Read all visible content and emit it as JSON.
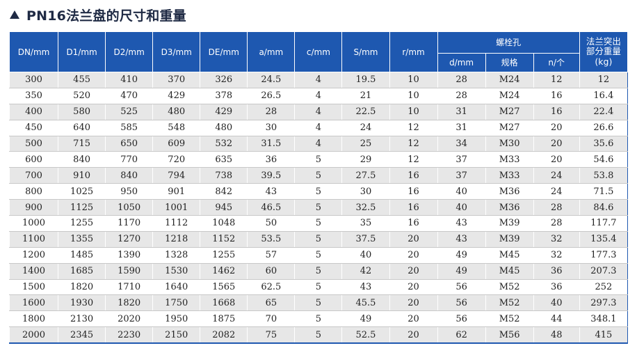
{
  "title": "PN16法兰盘的尺寸和重量",
  "headers": {
    "dn": "DN/mm",
    "d1": "D1/mm",
    "d2": "D2/mm",
    "d3": "D3/mm",
    "de": "DE/mm",
    "a": "a/mm",
    "c": "c/mm",
    "s": "S/mm",
    "r": "r/mm",
    "bolt_group": "螺栓孔",
    "bolt_d": "d/mm",
    "bolt_spec": "规格",
    "bolt_n": "n/个",
    "weight_line1": "法兰突出",
    "weight_line2": "部分重量",
    "weight_line3": "(kg)"
  },
  "rows": [
    [
      "300",
      "455",
      "410",
      "370",
      "326",
      "24.5",
      "4",
      "19.5",
      "10",
      "28",
      "M24",
      "12",
      "12"
    ],
    [
      "350",
      "520",
      "470",
      "429",
      "378",
      "26.5",
      "4",
      "21",
      "10",
      "28",
      "M24",
      "16",
      "16.4"
    ],
    [
      "400",
      "580",
      "525",
      "480",
      "429",
      "28",
      "4",
      "22.5",
      "10",
      "31",
      "M27",
      "16",
      "22.4"
    ],
    [
      "450",
      "640",
      "585",
      "548",
      "480",
      "30",
      "4",
      "24",
      "12",
      "31",
      "M27",
      "20",
      "26.6"
    ],
    [
      "500",
      "715",
      "650",
      "609",
      "532",
      "31.5",
      "4",
      "25",
      "12",
      "34",
      "M30",
      "20",
      "35.6"
    ],
    [
      "600",
      "840",
      "770",
      "720",
      "635",
      "36",
      "5",
      "29",
      "12",
      "37",
      "M33",
      "20",
      "54.6"
    ],
    [
      "700",
      "910",
      "840",
      "794",
      "738",
      "39.5",
      "5",
      "27.5",
      "16",
      "37",
      "M33",
      "24",
      "53.8"
    ],
    [
      "800",
      "1025",
      "950",
      "901",
      "842",
      "43",
      "5",
      "30",
      "16",
      "40",
      "M36",
      "24",
      "71.5"
    ],
    [
      "900",
      "1125",
      "1050",
      "1001",
      "945",
      "46.5",
      "5",
      "32.5",
      "16",
      "40",
      "M36",
      "28",
      "84.6"
    ],
    [
      "1000",
      "1255",
      "1170",
      "1112",
      "1048",
      "50",
      "5",
      "35",
      "16",
      "43",
      "M39",
      "28",
      "117.7"
    ],
    [
      "1100",
      "1355",
      "1270",
      "1218",
      "1152",
      "53.5",
      "5",
      "37.5",
      "20",
      "43",
      "M39",
      "32",
      "135.4"
    ],
    [
      "1200",
      "1485",
      "1390",
      "1328",
      "1255",
      "57",
      "5",
      "40",
      "20",
      "49",
      "M45",
      "32",
      "177.3"
    ],
    [
      "1400",
      "1685",
      "1590",
      "1530",
      "1462",
      "60",
      "5",
      "42",
      "20",
      "49",
      "M45",
      "36",
      "207.3"
    ],
    [
      "1500",
      "1820",
      "1710",
      "1640",
      "1565",
      "62.5",
      "5",
      "43",
      "20",
      "56",
      "M52",
      "36",
      "252"
    ],
    [
      "1600",
      "1930",
      "1820",
      "1750",
      "1668",
      "65",
      "5",
      "45.5",
      "20",
      "56",
      "M52",
      "40",
      "297.3"
    ],
    [
      "1800",
      "2130",
      "2020",
      "1950",
      "1875",
      "70",
      "5",
      "49",
      "20",
      "56",
      "M52",
      "44",
      "348.1"
    ],
    [
      "2000",
      "2345",
      "2230",
      "2150",
      "2082",
      "75",
      "5",
      "52.5",
      "20",
      "62",
      "M56",
      "48",
      "415"
    ]
  ]
}
